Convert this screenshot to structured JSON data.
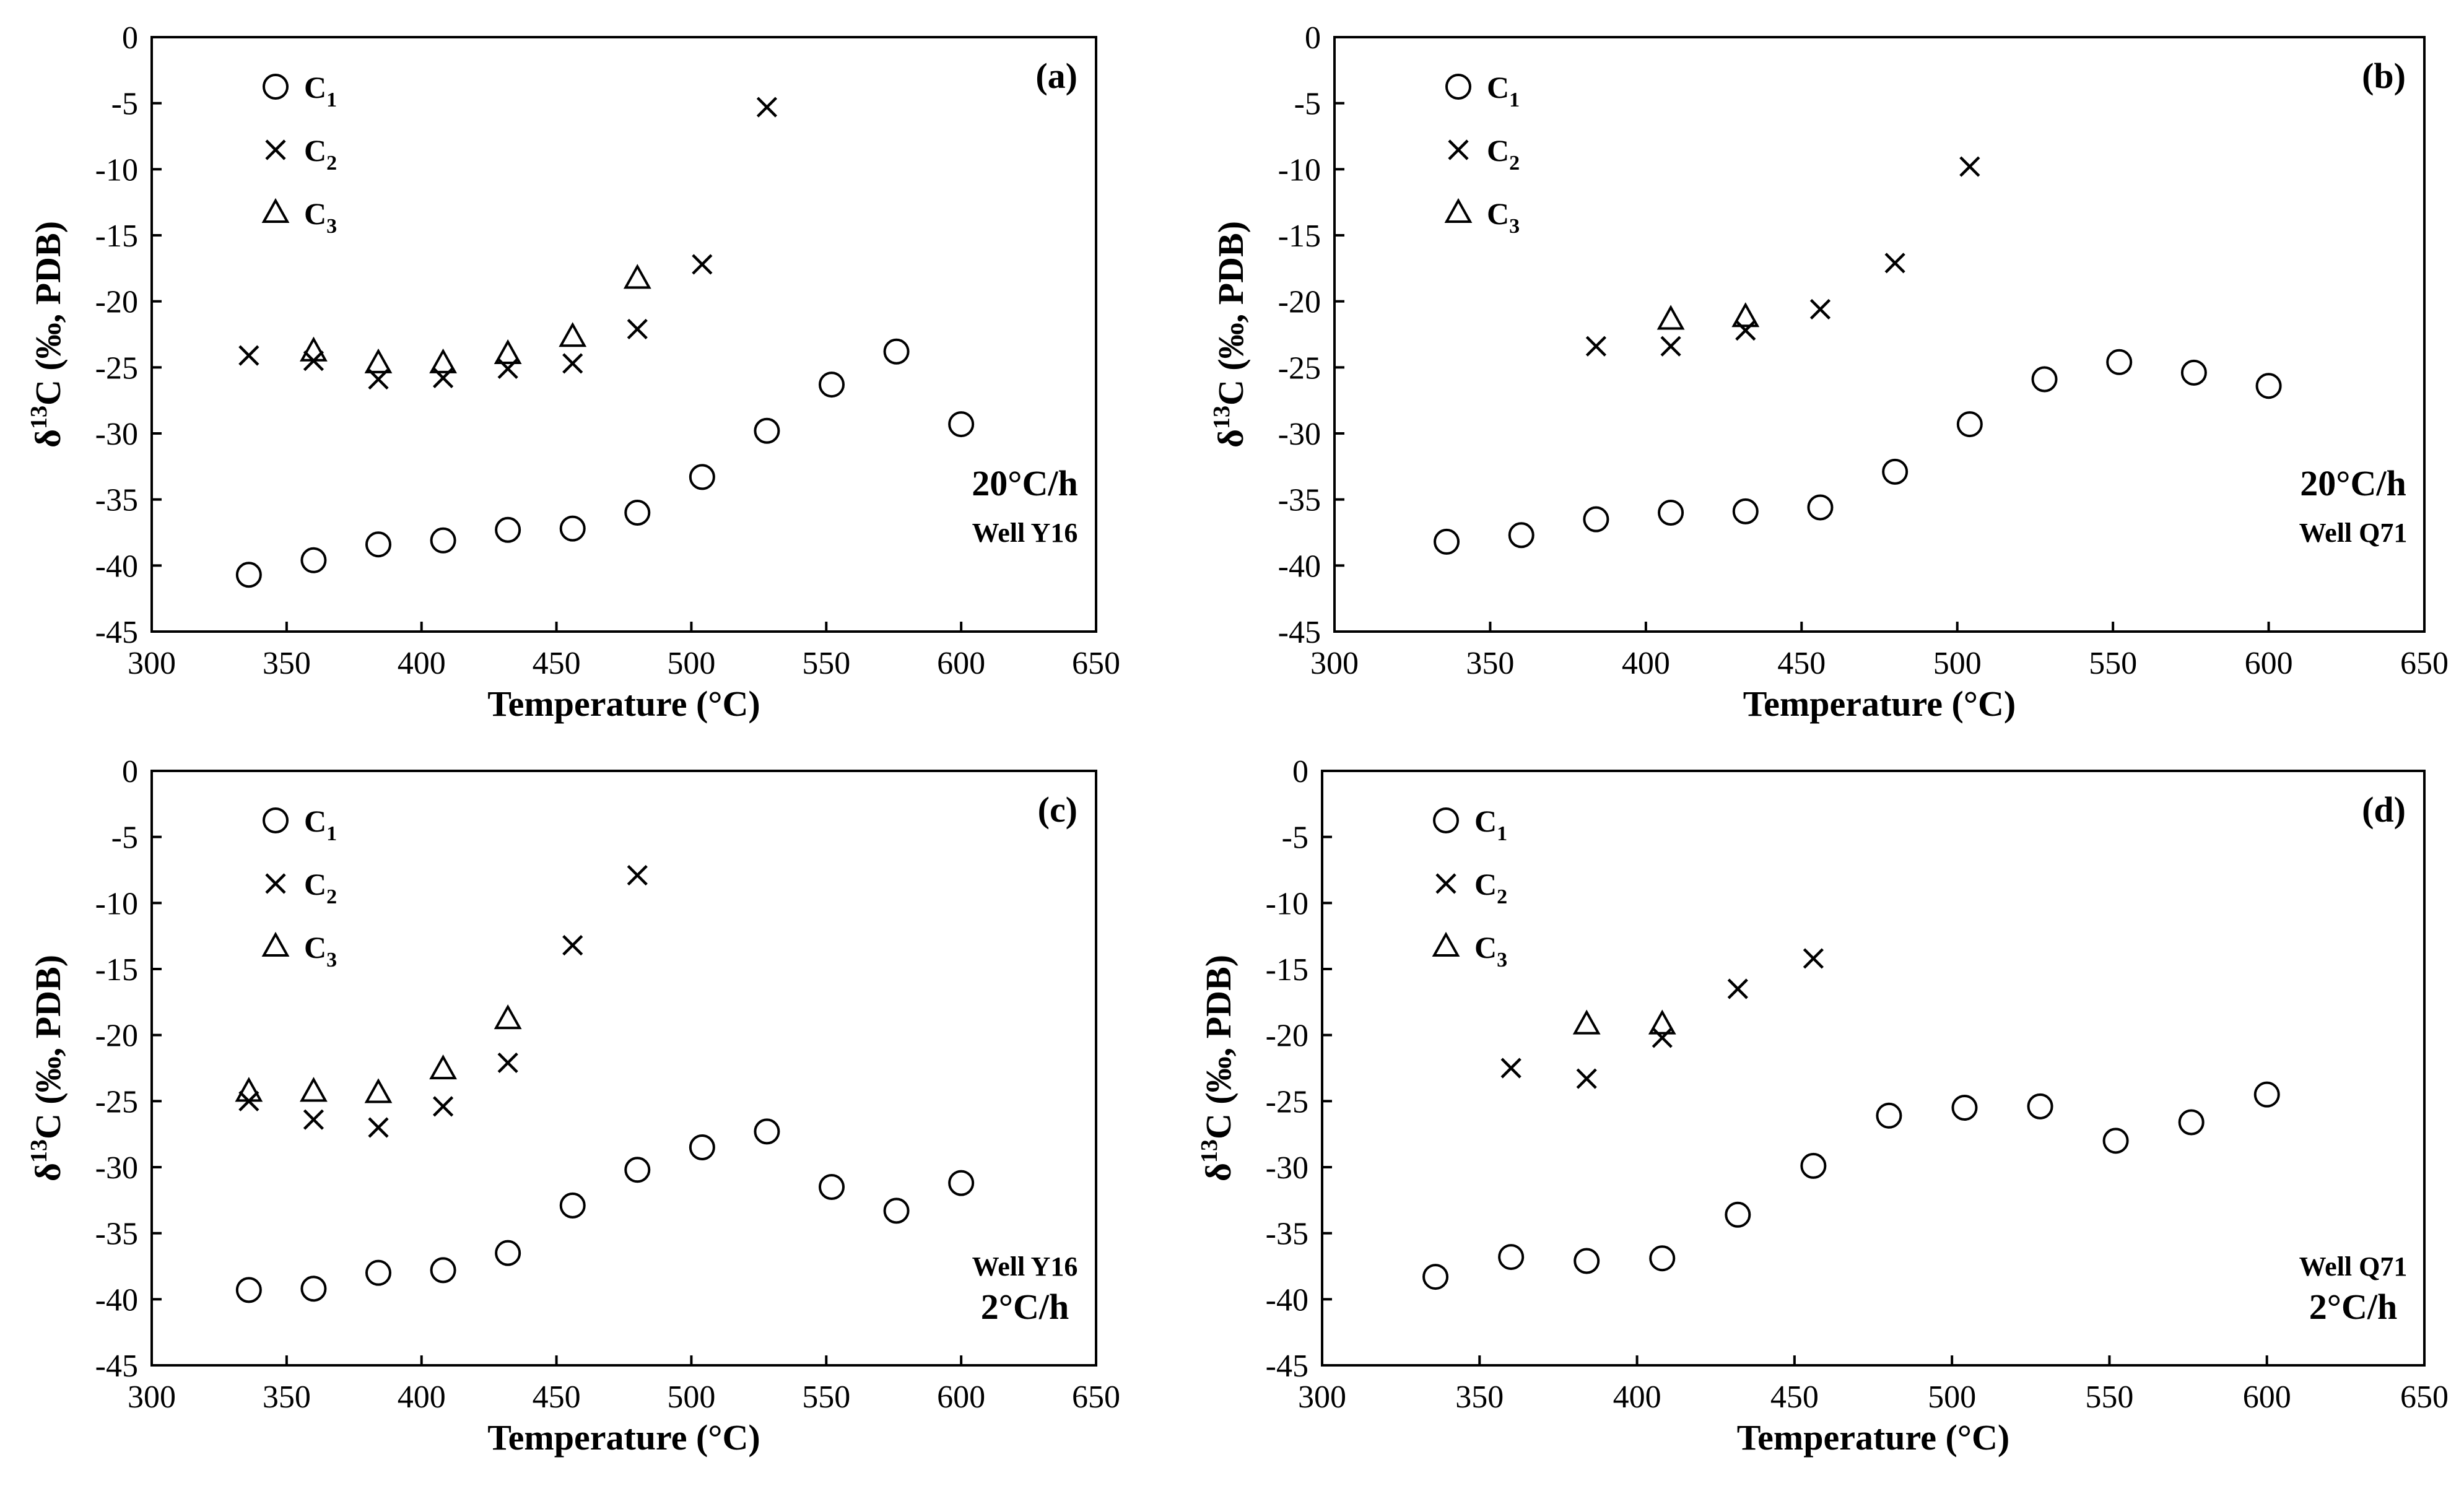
{
  "chart_data": [
    {
      "type": "scatter",
      "panel_label": "(a)",
      "rate_label": "20°C/h",
      "well_label": "Well Y16",
      "xlabel": "Temperature (°C)",
      "ylabel_parts": [
        "δ",
        "13",
        "C (‰, PDB)"
      ],
      "xlim": [
        300,
        650
      ],
      "ylim": [
        -45,
        0
      ],
      "xticks": [
        300,
        350,
        400,
        450,
        500,
        550,
        600,
        650
      ],
      "yticks": [
        0,
        -5,
        -10,
        -15,
        -20,
        -25,
        -30,
        -35,
        -40,
        -45
      ],
      "legend": [
        {
          "base": "C",
          "sub": "1",
          "marker": "circle"
        },
        {
          "base": "C",
          "sub": "2",
          "marker": "cross"
        },
        {
          "base": "C",
          "sub": "3",
          "marker": "triangle"
        }
      ],
      "series": [
        {
          "name": "C1",
          "marker": "circle",
          "x": [
            336,
            360,
            384,
            408,
            432,
            456,
            480,
            504,
            528,
            552,
            576,
            600
          ],
          "y": [
            -40.7,
            -39.6,
            -38.4,
            -38.1,
            -37.3,
            -37.2,
            -36.0,
            -33.3,
            -29.8,
            -26.3,
            -23.8,
            -29.3
          ]
        },
        {
          "name": "C2",
          "marker": "cross",
          "x": [
            336,
            360,
            384,
            408,
            432,
            456,
            480,
            504,
            528
          ],
          "y": [
            -24.1,
            -24.5,
            -25.9,
            -25.8,
            -25.1,
            -24.7,
            -22.1,
            -17.2,
            -5.3
          ]
        },
        {
          "name": "C3",
          "marker": "triangle",
          "x": [
            360,
            384,
            408,
            432,
            456,
            480
          ],
          "y": [
            -23.8,
            -24.7,
            -24.7,
            -24.0,
            -22.7,
            -18.3
          ]
        }
      ]
    },
    {
      "type": "scatter",
      "panel_label": "(b)",
      "rate_label": "20°C/h",
      "well_label": "Well Q71",
      "xlabel": "Temperature (°C)",
      "ylabel_parts": [
        "δ",
        "13",
        "C (‰, PDB)"
      ],
      "xlim": [
        300,
        650
      ],
      "ylim": [
        -45,
        0
      ],
      "xticks": [
        300,
        350,
        400,
        450,
        500,
        550,
        600,
        650
      ],
      "yticks": [
        0,
        -5,
        -10,
        -15,
        -20,
        -25,
        -30,
        -35,
        -40,
        -45
      ],
      "legend": [
        {
          "base": "C",
          "sub": "1",
          "marker": "circle"
        },
        {
          "base": "C",
          "sub": "2",
          "marker": "cross"
        },
        {
          "base": "C",
          "sub": "3",
          "marker": "triangle"
        }
      ],
      "series": [
        {
          "name": "C1",
          "marker": "circle",
          "x": [
            336,
            360,
            384,
            408,
            432,
            456,
            480,
            504,
            528,
            552,
            576,
            600
          ],
          "y": [
            -38.2,
            -37.7,
            -36.5,
            -36.0,
            -35.9,
            -35.6,
            -32.9,
            -29.3,
            -25.9,
            -24.6,
            -25.4,
            -26.4
          ]
        },
        {
          "name": "C2",
          "marker": "cross",
          "x": [
            384,
            408,
            432,
            456,
            480,
            504
          ],
          "y": [
            -23.4,
            -23.4,
            -22.2,
            -20.6,
            -17.1,
            -9.8
          ]
        },
        {
          "name": "C3",
          "marker": "triangle",
          "x": [
            408,
            432
          ],
          "y": [
            -21.4,
            -21.2
          ]
        }
      ]
    },
    {
      "type": "scatter",
      "panel_label": "(c)",
      "rate_label": "2°C/h",
      "well_label": "Well Y16",
      "xlabel": "Temperature (°C)",
      "ylabel_parts": [
        "δ",
        "13",
        "C (‰, PDB)"
      ],
      "xlim": [
        300,
        650
      ],
      "ylim": [
        -45,
        0
      ],
      "xticks": [
        300,
        350,
        400,
        450,
        500,
        550,
        600,
        650
      ],
      "yticks": [
        0,
        -5,
        -10,
        -15,
        -20,
        -25,
        -30,
        -35,
        -40,
        -45
      ],
      "legend": [
        {
          "base": "C",
          "sub": "1",
          "marker": "circle"
        },
        {
          "base": "C",
          "sub": "2",
          "marker": "cross"
        },
        {
          "base": "C",
          "sub": "3",
          "marker": "triangle"
        }
      ],
      "series": [
        {
          "name": "C1",
          "marker": "circle",
          "x": [
            336,
            360,
            384,
            408,
            432,
            456,
            480,
            504,
            528,
            552,
            576,
            600
          ],
          "y": [
            -39.3,
            -39.2,
            -38.0,
            -37.8,
            -36.5,
            -32.9,
            -30.2,
            -28.5,
            -27.3,
            -31.5,
            -33.3,
            -31.2
          ]
        },
        {
          "name": "C2",
          "marker": "cross",
          "x": [
            336,
            360,
            384,
            408,
            432,
            456,
            480
          ],
          "y": [
            -25.0,
            -26.4,
            -27.0,
            -25.4,
            -22.1,
            -13.2,
            -7.9
          ]
        },
        {
          "name": "C3",
          "marker": "triangle",
          "x": [
            336,
            360,
            384,
            408,
            432
          ],
          "y": [
            -24.3,
            -24.3,
            -24.4,
            -22.6,
            -18.8
          ]
        }
      ]
    },
    {
      "type": "scatter",
      "panel_label": "(d)",
      "rate_label": "2°C/h",
      "well_label": "Well Q71",
      "xlabel": "Temperature (°C)",
      "ylabel_parts": [
        "δ",
        "13",
        "C (‰, PDB)"
      ],
      "xlim": [
        300,
        650
      ],
      "ylim": [
        -45,
        0
      ],
      "xticks": [
        300,
        350,
        400,
        450,
        500,
        550,
        600,
        650
      ],
      "yticks": [
        0,
        -5,
        -10,
        -15,
        -20,
        -25,
        -30,
        -35,
        -40,
        -45
      ],
      "legend": [
        {
          "base": "C",
          "sub": "1",
          "marker": "circle"
        },
        {
          "base": "C",
          "sub": "2",
          "marker": "cross"
        },
        {
          "base": "C",
          "sub": "3",
          "marker": "triangle"
        }
      ],
      "series": [
        {
          "name": "C1",
          "marker": "circle",
          "x": [
            336,
            360,
            384,
            408,
            432,
            456,
            480,
            504,
            528,
            552,
            576,
            600
          ],
          "y": [
            -38.3,
            -36.8,
            -37.1,
            -36.9,
            -33.6,
            -29.9,
            -26.1,
            -25.5,
            -25.4,
            -28.0,
            -26.6,
            -24.5
          ]
        },
        {
          "name": "C2",
          "marker": "cross",
          "x": [
            360,
            384,
            408,
            432,
            456
          ],
          "y": [
            -22.5,
            -23.3,
            -20.2,
            -16.5,
            -14.2
          ]
        },
        {
          "name": "C3",
          "marker": "triangle",
          "x": [
            384,
            408
          ],
          "y": [
            -19.2,
            -19.2
          ]
        }
      ]
    }
  ]
}
